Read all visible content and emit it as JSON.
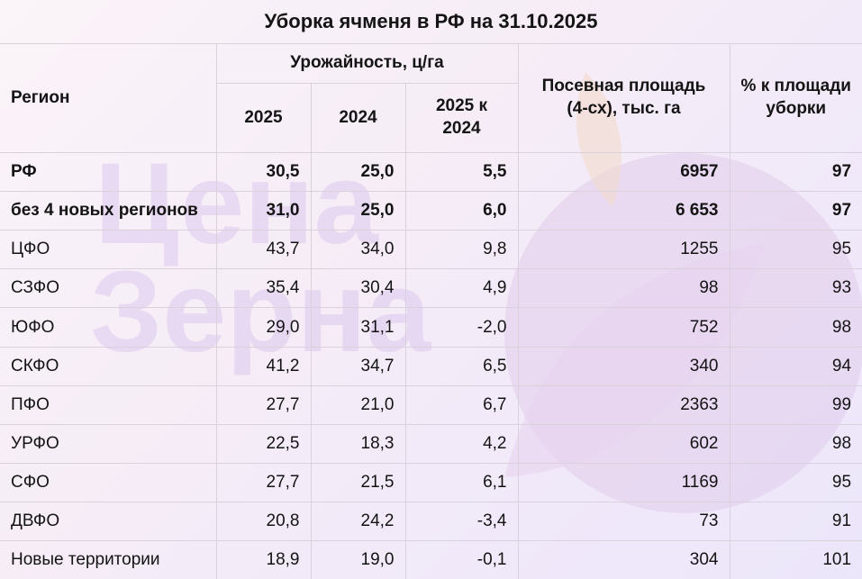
{
  "title": "Уборка ячменя в РФ на 31.10.2025",
  "watermark": {
    "line1": "Цена",
    "line2": "Зерна"
  },
  "headers": {
    "region": "Регион",
    "yield_group": "Урожайность, ц/га",
    "y2025": "2025",
    "y2024": "2024",
    "diff_line1": "2025 к",
    "diff_line2": "2024",
    "area_line1": "Посевная площадь",
    "area_line2": "(4-сх), тыс. га",
    "pct_line1": "% к площади",
    "pct_line2": "уборки"
  },
  "rows": [
    {
      "region": "РФ",
      "y2025": "30,5",
      "y2024": "25,0",
      "diff": "5,5",
      "area": "6957",
      "pct": "97"
    },
    {
      "region": "без 4 новых регионов",
      "y2025": "31,0",
      "y2024": "25,0",
      "diff": "6,0",
      "area": "6 653",
      "pct": "97"
    },
    {
      "region": "ЦФО",
      "y2025": "43,7",
      "y2024": "34,0",
      "diff": "9,8",
      "area": "1255",
      "pct": "95"
    },
    {
      "region": "СЗФО",
      "y2025": "35,4",
      "y2024": "30,4",
      "diff": "4,9",
      "area": "98",
      "pct": "93"
    },
    {
      "region": "ЮФО",
      "y2025": "29,0",
      "y2024": "31,1",
      "diff": "-2,0",
      "area": "752",
      "pct": "98"
    },
    {
      "region": "СКФО",
      "y2025": "41,2",
      "y2024": "34,7",
      "diff": "6,5",
      "area": "340",
      "pct": "94"
    },
    {
      "region": "ПФО",
      "y2025": "27,7",
      "y2024": "21,0",
      "diff": "6,7",
      "area": "2363",
      "pct": "99"
    },
    {
      "region": "УРФО",
      "y2025": "22,5",
      "y2024": "18,3",
      "diff": "4,2",
      "area": "602",
      "pct": "98"
    },
    {
      "region": "СФО",
      "y2025": "27,7",
      "y2024": "21,5",
      "diff": "6,1",
      "area": "1169",
      "pct": "95"
    },
    {
      "region": "ДВФО",
      "y2025": "20,8",
      "y2024": "24,2",
      "diff": "-3,4",
      "area": "73",
      "pct": "91"
    },
    {
      "region": "Новые территории",
      "y2025": "18,9",
      "y2024": "19,0",
      "diff": "-0,1",
      "area": "304",
      "pct": "101"
    }
  ]
}
